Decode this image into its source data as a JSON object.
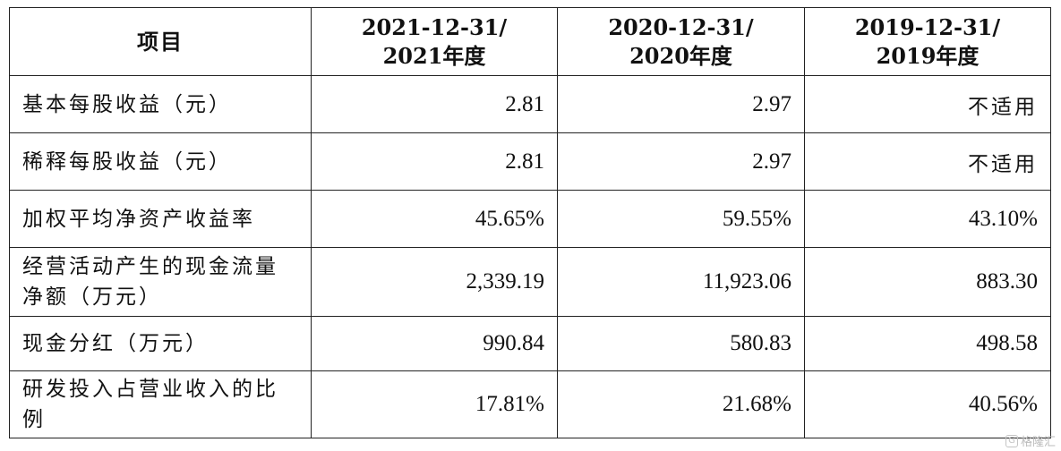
{
  "table": {
    "header": {
      "item": "项目",
      "col1_line1": "2021-12-31/",
      "col1_line2": "2021年度",
      "col2_line1": "2020-12-31/",
      "col2_line2": "2020年度",
      "col3_line1": "2019-12-31/",
      "col3_line2": "2019年度"
    },
    "rows": [
      {
        "label": "基本每股收益（元）",
        "v2021": "2.81",
        "v2020": "2.97",
        "v2019": "不适用"
      },
      {
        "label": "稀释每股收益（元）",
        "v2021": "2.81",
        "v2020": "2.97",
        "v2019": "不适用"
      },
      {
        "label": "加权平均净资产收益率",
        "v2021": "45.65%",
        "v2020": "59.55%",
        "v2019": "43.10%"
      },
      {
        "label": "经营活动产生的现金流量净额（万元）",
        "v2021": "2,339.19",
        "v2020": "11,923.06",
        "v2019": "883.30"
      },
      {
        "label": "现金分红（万元）",
        "v2021": "990.84",
        "v2020": "580.83",
        "v2019": "498.58"
      },
      {
        "label": "研发投入占营业收入的比例",
        "v2021": "17.81%",
        "v2020": "21.68%",
        "v2019": "40.56%"
      }
    ]
  },
  "watermark": {
    "logo_glyph": "G",
    "text": "格隆汇"
  }
}
